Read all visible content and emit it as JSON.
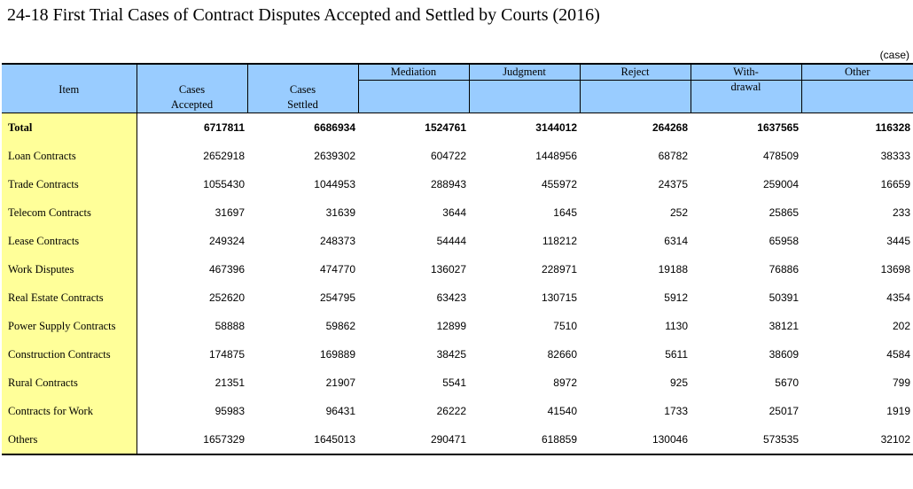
{
  "title": "24-18  First Trial Cases of Contract Disputes Accepted and Settled by Courts (2016)",
  "unit": "(case)",
  "headers": {
    "item": "Item",
    "accepted_line1": "Cases",
    "accepted_line2": "Accepted",
    "settled_line1": "Cases",
    "settled_line2": "Settled",
    "mediation": "Mediation",
    "judgment": "Judgment",
    "reject": "Reject",
    "withdrawal_line1": "With-",
    "withdrawal_line2": "drawal",
    "other": "Other"
  },
  "rows": [
    {
      "item": "Total",
      "accepted": "6717811",
      "settled": "6686934",
      "mediation": "1524761",
      "judgment": "3144012",
      "reject": "264268",
      "withdrawal": "1637565",
      "other": "116328"
    },
    {
      "item": "Loan Contracts",
      "accepted": "2652918",
      "settled": "2639302",
      "mediation": "604722",
      "judgment": "1448956",
      "reject": "68782",
      "withdrawal": "478509",
      "other": "38333"
    },
    {
      "item": "Trade Contracts",
      "accepted": "1055430",
      "settled": "1044953",
      "mediation": "288943",
      "judgment": "455972",
      "reject": "24375",
      "withdrawal": "259004",
      "other": "16659"
    },
    {
      "item": "Telecom Contracts",
      "accepted": "31697",
      "settled": "31639",
      "mediation": "3644",
      "judgment": "1645",
      "reject": "252",
      "withdrawal": "25865",
      "other": "233"
    },
    {
      "item": "Lease Contracts",
      "accepted": "249324",
      "settled": "248373",
      "mediation": "54444",
      "judgment": "118212",
      "reject": "6314",
      "withdrawal": "65958",
      "other": "3445"
    },
    {
      "item": "Work Disputes",
      "accepted": "467396",
      "settled": "474770",
      "mediation": "136027",
      "judgment": "228971",
      "reject": "19188",
      "withdrawal": "76886",
      "other": "13698"
    },
    {
      "item": "Real Estate Contracts",
      "accepted": "252620",
      "settled": "254795",
      "mediation": "63423",
      "judgment": "130715",
      "reject": "5912",
      "withdrawal": "50391",
      "other": "4354"
    },
    {
      "item": "Power Supply Contracts",
      "accepted": "58888",
      "settled": "59862",
      "mediation": "12899",
      "judgment": "7510",
      "reject": "1130",
      "withdrawal": "38121",
      "other": "202"
    },
    {
      "item": "Construction Contracts",
      "accepted": "174875",
      "settled": "169889",
      "mediation": "38425",
      "judgment": "82660",
      "reject": "5611",
      "withdrawal": "38609",
      "other": "4584"
    },
    {
      "item": "Rural Contracts",
      "accepted": "21351",
      "settled": "21907",
      "mediation": "5541",
      "judgment": "8972",
      "reject": "925",
      "withdrawal": "5670",
      "other": "799"
    },
    {
      "item": "Contracts for Work",
      "accepted": "95983",
      "settled": "96431",
      "mediation": "26222",
      "judgment": "41540",
      "reject": "1733",
      "withdrawal": "25017",
      "other": "1919"
    },
    {
      "item": "Others",
      "accepted": "1657329",
      "settled": "1645013",
      "mediation": "290471",
      "judgment": "618859",
      "reject": "130046",
      "withdrawal": "573535",
      "other": "32102"
    }
  ],
  "colors": {
    "header_bg": "#99ccff",
    "item_column_bg": "#ffff99"
  }
}
